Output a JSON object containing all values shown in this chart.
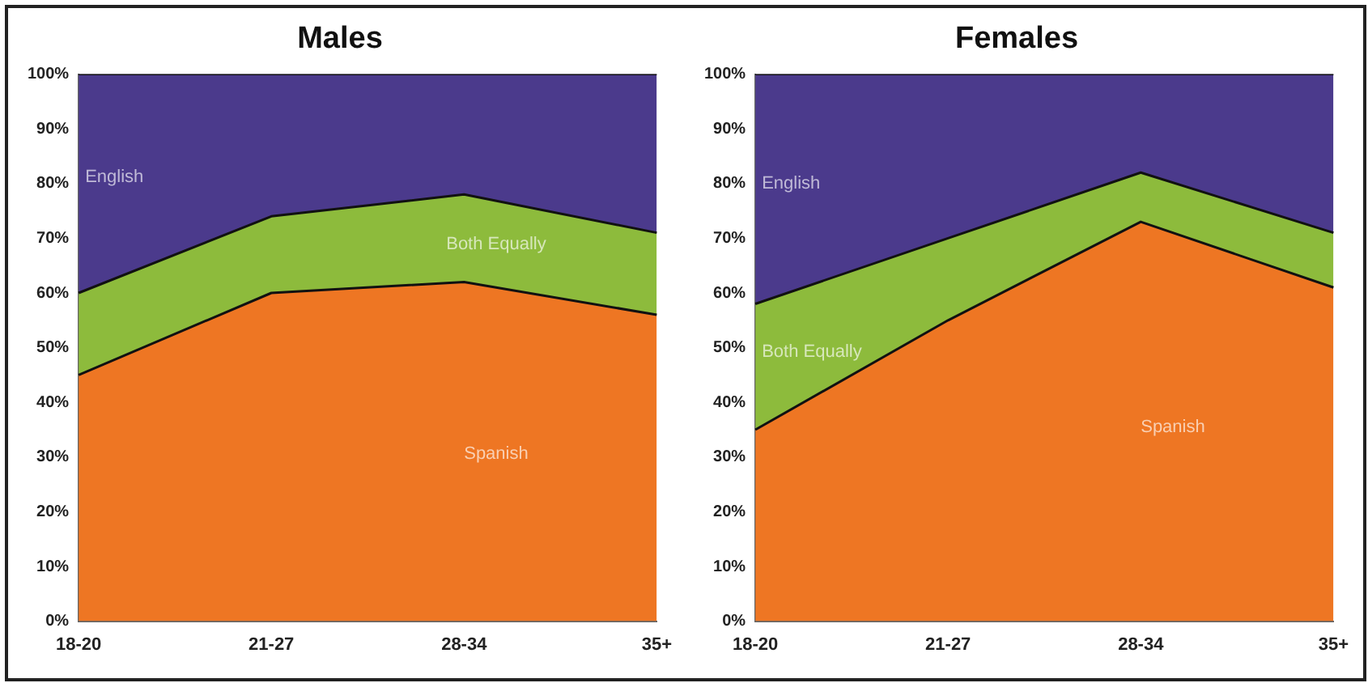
{
  "chart_data": [
    {
      "type": "area",
      "title": "Males",
      "categories": [
        "18-20",
        "21-27",
        "28-34",
        "35+"
      ],
      "stacked": true,
      "legend": false,
      "grid": false,
      "marker": "none",
      "ylim": [
        0,
        100
      ],
      "yticks": [
        {
          "value": 0,
          "label": "0%"
        },
        {
          "value": 10,
          "label": "10%"
        },
        {
          "value": 20,
          "label": "20%"
        },
        {
          "value": 30,
          "label": "30%"
        },
        {
          "value": 40,
          "label": "40%"
        },
        {
          "value": 50,
          "label": "50%"
        },
        {
          "value": 60,
          "label": "60%"
        },
        {
          "value": 70,
          "label": "70%"
        },
        {
          "value": 80,
          "label": "80%"
        },
        {
          "value": 90,
          "label": "90%"
        },
        {
          "value": 100,
          "label": "100%"
        }
      ],
      "series": [
        {
          "name": "Spanish",
          "color": "#ee7623",
          "values": [
            45,
            60,
            62,
            56
          ]
        },
        {
          "name": "Both Equally",
          "color": "#8dbb3c",
          "values": [
            15,
            14,
            16,
            15
          ]
        },
        {
          "name": "English",
          "color": "#4b3a8c",
          "values": [
            40,
            26,
            22,
            29
          ]
        }
      ]
    },
    {
      "type": "area",
      "title": "Females",
      "categories": [
        "18-20",
        "21-27",
        "28-34",
        "35+"
      ],
      "stacked": true,
      "legend": false,
      "grid": false,
      "marker": "none",
      "ylim": [
        0,
        100
      ],
      "yticks": [
        {
          "value": 0,
          "label": "0%"
        },
        {
          "value": 10,
          "label": "10%"
        },
        {
          "value": 20,
          "label": "20%"
        },
        {
          "value": 30,
          "label": "30%"
        },
        {
          "value": 40,
          "label": "40%"
        },
        {
          "value": 50,
          "label": "50%"
        },
        {
          "value": 60,
          "label": "60%"
        },
        {
          "value": 70,
          "label": "70%"
        },
        {
          "value": 80,
          "label": "80%"
        },
        {
          "value": 90,
          "label": "90%"
        },
        {
          "value": 100,
          "label": "100%"
        }
      ],
      "series": [
        {
          "name": "Spanish",
          "color": "#ee7623",
          "values": [
            35,
            55,
            73,
            61
          ]
        },
        {
          "name": "Both Equally",
          "color": "#8dbb3c",
          "values": [
            23,
            15,
            9,
            10
          ]
        },
        {
          "name": "English",
          "color": "#4b3a8c",
          "values": [
            42,
            30,
            18,
            29
          ]
        }
      ]
    }
  ]
}
